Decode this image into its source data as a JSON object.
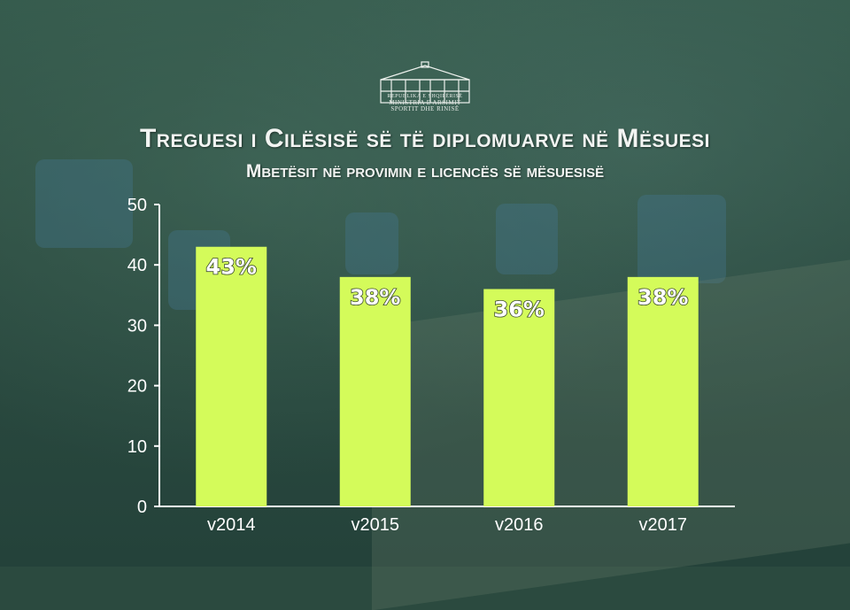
{
  "logo": {
    "icon": "government-building-icon",
    "lines": [
      "REPUBLIKA E SHQIPËRISË",
      "MINISTRIA E ARSIMIT",
      "SPORTIT DHE RINISË"
    ]
  },
  "chart_data": {
    "type": "bar",
    "title": "Treguesi i Cilësisë së të diplomuarve në Mësuesi",
    "subtitle": "Mbetësit në provimin e licencës së mësuesisë",
    "categories": [
      "v2014",
      "v2015",
      "v2016",
      "v2017"
    ],
    "values": [
      43,
      38,
      36,
      38
    ],
    "data_labels": [
      "43%",
      "38%",
      "36%",
      "38%"
    ],
    "ylim": [
      0,
      50
    ],
    "yticks": [
      0,
      10,
      20,
      30,
      40,
      50
    ],
    "grid": false,
    "bar_color": "#d4fb5a",
    "axis_color": "#ffffff"
  }
}
